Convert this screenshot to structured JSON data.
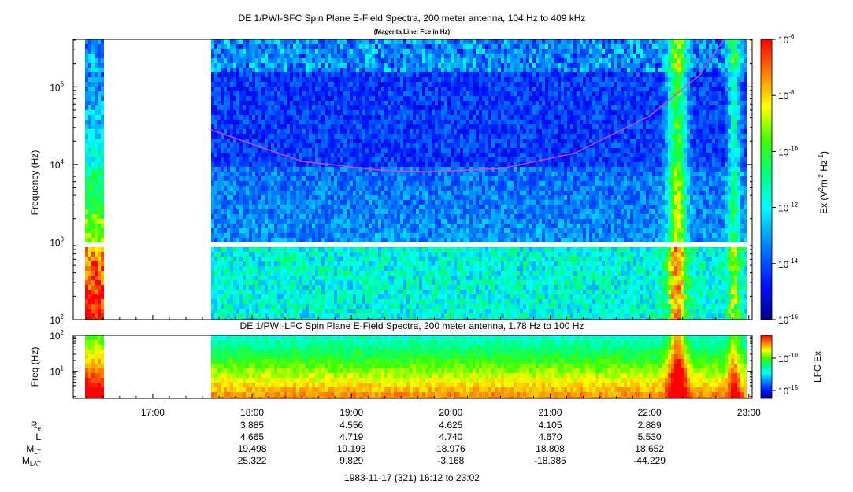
{
  "chart_data": [
    {
      "type": "heatmap",
      "title": "DE 1/PWI-SFC  Spin Plane E-Field Spectra, 200 meter antenna, 104 Hz to 409 kHz",
      "subtitle": "(Magenta Line: Fce in Hz)",
      "ylabel": "Frequency (Hz)",
      "yscale": "log",
      "ylim": [
        100,
        409000
      ],
      "y_ticks": [
        {
          "exp": "2",
          "value": 100
        },
        {
          "exp": "3",
          "value": 1000
        },
        {
          "exp": "4",
          "value": 10000
        },
        {
          "exp": "5",
          "value": 100000
        }
      ],
      "colorbar": {
        "label_main": "Ex (V",
        "label_tail": "m",
        "label_tail2": " Hz",
        "label_close": ")",
        "label_exp1": "2",
        "label_exp2": "-2",
        "label_exp3": "-1",
        "scale": "log",
        "range": [
          1e-16,
          1e-06
        ],
        "ticks": [
          {
            "exp": "-6",
            "value": 1e-06
          },
          {
            "exp": "-8",
            "value": 1e-08
          },
          {
            "exp": "-10",
            "value": 1e-10
          },
          {
            "exp": "-12",
            "value": 1e-12
          },
          {
            "exp": "-14",
            "value": 1e-14
          },
          {
            "exp": "-16",
            "value": 1e-16
          }
        ]
      },
      "data_gaps_utc": [
        [
          "16:30",
          "17:35"
        ]
      ],
      "fce_line": {
        "color": "#e040e0",
        "points": [
          {
            "t": "17:35",
            "f": 28000
          },
          {
            "t": "18:30",
            "f": 11000
          },
          {
            "t": "19:15",
            "f": 8500
          },
          {
            "t": "19:45",
            "f": 8000
          },
          {
            "t": "20:30",
            "f": 8800
          },
          {
            "t": "21:15",
            "f": 14000
          },
          {
            "t": "22:00",
            "f": 42000
          },
          {
            "t": "22:30",
            "f": 140000
          },
          {
            "t": "22:45",
            "f": 409000
          }
        ]
      }
    },
    {
      "type": "heatmap",
      "title": "DE 1/PWI-LFC  Spin Plane E-Field Spectra, 200 meter antenna, 1.78 Hz to 100 Hz",
      "ylabel": "Freq (Hz)",
      "yscale": "log",
      "ylim": [
        1.78,
        100
      ],
      "y_ticks": [
        {
          "exp": "1",
          "value": 10
        },
        {
          "exp": "2",
          "value": 100
        }
      ],
      "colorbar": {
        "label": "LFC Ex",
        "scale": "log",
        "ticks": [
          {
            "exp": "-10",
            "value": 1e-10
          },
          {
            "exp": "-15",
            "value": 1e-15
          }
        ]
      },
      "data_gaps_utc": [
        [
          "16:30",
          "17:35"
        ]
      ]
    }
  ],
  "x_axis": {
    "range_utc": [
      "16:12",
      "23:02"
    ],
    "tick_labels": [
      "17:00",
      "18:00",
      "19:00",
      "20:00",
      "21:00",
      "22:00",
      "23:00"
    ]
  },
  "ephemeris": {
    "rows": [
      {
        "label": "R",
        "sub": "e",
        "values": [
          "3.885",
          "4.556",
          "4.625",
          "4.105",
          "2.889"
        ]
      },
      {
        "label": "L",
        "sub": "",
        "values": [
          "4.665",
          "4.719",
          "4.740",
          "4.670",
          "5.530"
        ]
      },
      {
        "label": "M",
        "sub": "LT",
        "values": [
          "19.498",
          "19.193",
          "18.976",
          "18.808",
          "18.652"
        ]
      },
      {
        "label": "M",
        "sub": "LAT",
        "values": [
          "25.322",
          "9.829",
          "-3.168",
          "-18.385",
          "-44.229"
        ]
      }
    ]
  },
  "footer": "1983-11-17 (321) 16:12 to 23:02",
  "tick_base": "10"
}
